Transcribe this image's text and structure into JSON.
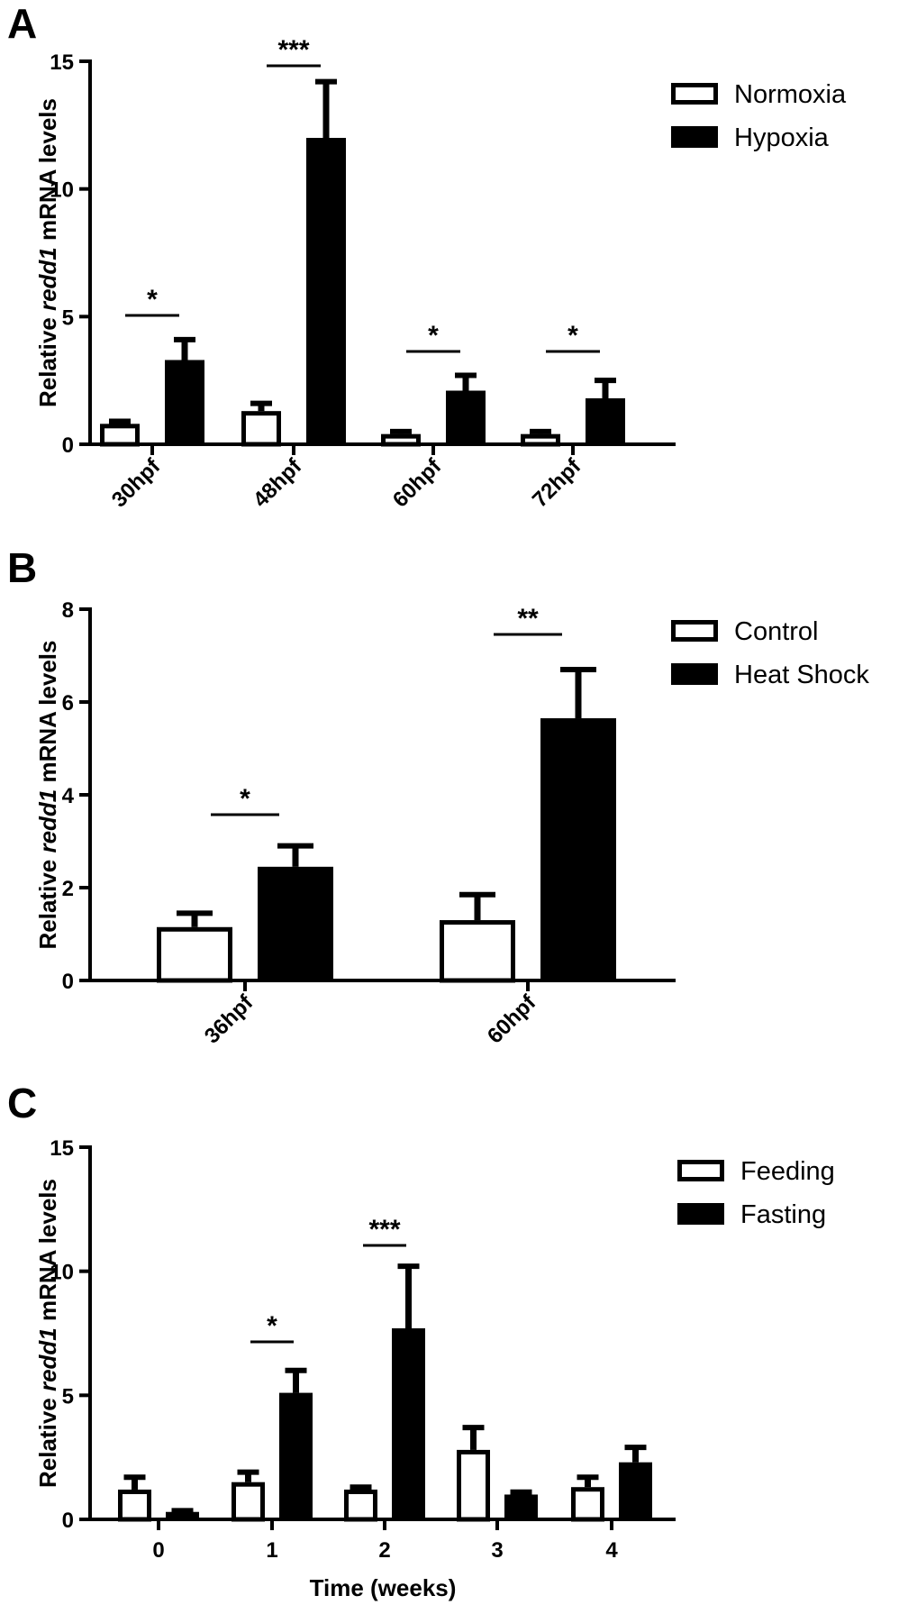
{
  "chart_data": [
    {
      "panel": "A",
      "type": "bar",
      "ylabel_parts": [
        "Relative ",
        "redd1",
        " mRNA levels"
      ],
      "xlabel": "",
      "ylim": [
        0,
        15
      ],
      "yticks": [
        "0",
        "5",
        "10",
        "15"
      ],
      "categories": [
        "30hpf",
        "48hpf",
        "60hpf",
        "72hpf"
      ],
      "series": [
        {
          "name": "Normoxia",
          "fill": "white",
          "values": [
            0.8,
            1.3,
            0.4,
            0.4
          ],
          "errors": [
            0.1,
            0.3,
            0.1,
            0.1
          ]
        },
        {
          "name": "Hypoxia",
          "fill": "black",
          "values": [
            3.3,
            12.0,
            2.1,
            1.8
          ],
          "errors": [
            0.8,
            2.2,
            0.6,
            0.7
          ]
        }
      ],
      "significance": [
        "*",
        "***",
        "*",
        "*"
      ],
      "legend": "top-right"
    },
    {
      "panel": "B",
      "type": "bar",
      "ylabel_parts": [
        "Relative ",
        "redd1",
        " mRNA levels"
      ],
      "xlabel": "",
      "ylim": [
        0,
        8
      ],
      "yticks": [
        "0",
        "2",
        "4",
        "6",
        "8"
      ],
      "categories": [
        "36hpf",
        "60hpf"
      ],
      "series": [
        {
          "name": "Control",
          "fill": "white",
          "values": [
            1.15,
            1.3
          ],
          "errors": [
            0.3,
            0.55
          ]
        },
        {
          "name": "Heat Shock",
          "fill": "black",
          "values": [
            2.45,
            5.65
          ],
          "errors": [
            0.45,
            1.05
          ]
        }
      ],
      "significance": [
        "*",
        "**"
      ],
      "legend": "top-right"
    },
    {
      "panel": "C",
      "type": "bar",
      "ylabel_parts": [
        "Relative ",
        "redd1",
        " mRNA levels"
      ],
      "xlabel": "Time (weeks)",
      "ylim": [
        0,
        15
      ],
      "yticks": [
        "0",
        "5",
        "10",
        "15"
      ],
      "categories": [
        "0",
        "1",
        "2",
        "3",
        "4"
      ],
      "series": [
        {
          "name": "Feeding",
          "fill": "white",
          "values": [
            1.2,
            1.5,
            1.2,
            2.8,
            1.3
          ],
          "errors": [
            0.5,
            0.4,
            0.1,
            0.9,
            0.4
          ]
        },
        {
          "name": "Fasting",
          "fill": "black",
          "values": [
            0.3,
            5.1,
            7.7,
            1.0,
            2.3
          ],
          "errors": [
            0.05,
            0.9,
            2.5,
            0.1,
            0.6
          ]
        }
      ],
      "significance": [
        "",
        "*",
        "***",
        "",
        ""
      ],
      "legend": "top-right"
    }
  ]
}
